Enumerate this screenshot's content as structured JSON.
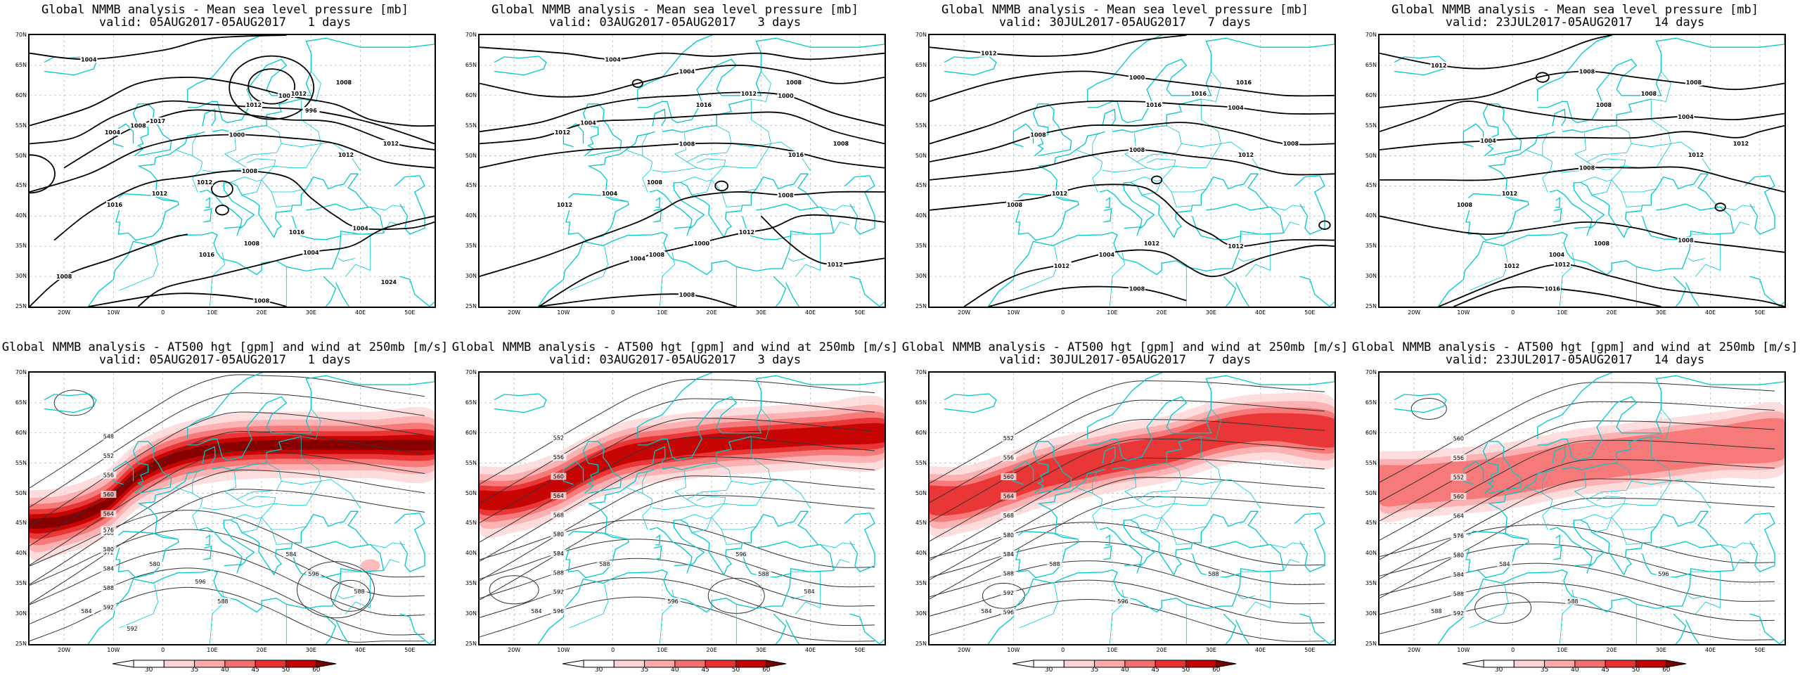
{
  "colors": {
    "coast": "#00c8c8",
    "isobar": "#000000",
    "grid": "#b8b8b8",
    "jet_scale": [
      "#ffffff",
      "#fdd4d4",
      "#fcaaaa",
      "#f47070",
      "#e83030",
      "#c40000",
      "#7a0000"
    ]
  },
  "axes": {
    "lat_labels": [
      "70N",
      "65N",
      "60N",
      "55N",
      "50N",
      "45N",
      "40N",
      "35N",
      "30N",
      "25N"
    ],
    "lon_labels": [
      "20W",
      "10W",
      "0",
      "10E",
      "20E",
      "30E",
      "40E",
      "50E"
    ]
  },
  "colorbar": {
    "ticks": [
      "30",
      "35",
      "40",
      "45",
      "50",
      "60"
    ]
  },
  "panels": [
    {
      "title": "Global NMMB analysis - Mean sea level pressure [mb]",
      "valid": "valid: 05AUG2017-05AUG2017   1 days",
      "type": "mslp",
      "contour_labels": [
        "1004",
        "1000",
        "996",
        "1008",
        "1000",
        "1004",
        "1008",
        "1004",
        "1008",
        "1012",
        "1012",
        "1016",
        "1016",
        "1012",
        "1012",
        "1012",
        "1008",
        "1008",
        "1004",
        "1012",
        "1016",
        "1024",
        "1017",
        "1008"
      ]
    },
    {
      "title": "Global NMMB analysis - Mean sea level pressure [mb]",
      "valid": "valid: 03AUG2017-05AUG2017   3 days",
      "type": "mslp",
      "contour_labels": [
        "1004",
        "1004",
        "1000",
        "1004",
        "1008",
        "1008",
        "1004",
        "1008",
        "1012",
        "1016",
        "1016",
        "1012",
        "1008",
        "1012",
        "1008",
        "1004",
        "1000",
        "1008",
        "1012",
        "1008",
        "1012"
      ]
    },
    {
      "title": "Global NMMB analysis - Mean sea level pressure [mb]",
      "valid": "valid: 30JUL2017-05AUG2017   7 days",
      "type": "mslp",
      "contour_labels": [
        "1012",
        "1000",
        "1004",
        "1008",
        "1008",
        "1012",
        "1016",
        "1008",
        "1012",
        "1016",
        "1012",
        "1008",
        "1004",
        "1016",
        "1008",
        "1012",
        "1012",
        "1016"
      ]
    },
    {
      "title": "Global NMMB analysis - Mean sea level pressure [mb]",
      "valid": "valid: 23JUL2017-05AUG2017   14 days",
      "type": "mslp",
      "contour_labels": [
        "1012",
        "1008",
        "1004",
        "1004",
        "1008",
        "1008",
        "1012",
        "1016",
        "1012",
        "1008",
        "1012",
        "1008",
        "1004",
        "1008",
        "1012",
        "1012",
        "1008",
        "1008"
      ]
    },
    {
      "title": "Global NMMB analysis - AT500 hgt [gpm] and wind at 250mb [m/s]",
      "valid": "valid: 05AUG2017-05AUG2017   1 days",
      "type": "z500",
      "contour_labels": [
        "548",
        "552",
        "556",
        "560",
        "564",
        "568",
        "572",
        "576",
        "580",
        "584",
        "588",
        "592",
        "596",
        "584",
        "580",
        "588",
        "584",
        "588",
        "592",
        "596"
      ]
    },
    {
      "title": "Global NMMB analysis - AT500 hgt [gpm] and wind at 250mb [m/s]",
      "valid": "valid: 03AUG2017-05AUG2017   3 days",
      "type": "z500",
      "contour_labels": [
        "552",
        "556",
        "560",
        "564",
        "568",
        "572",
        "576",
        "580",
        "584",
        "588",
        "592",
        "596",
        "588",
        "584",
        "588",
        "596",
        "596",
        "584"
      ]
    },
    {
      "title": "Global NMMB analysis - AT500 hgt [gpm] and wind at 250mb [m/s]",
      "valid": "valid: 30JUL2017-05AUG2017   7 days",
      "type": "z500",
      "contour_labels": [
        "552",
        "556",
        "560",
        "564",
        "568",
        "572",
        "576",
        "580",
        "584",
        "588",
        "592",
        "596",
        "588",
        "584",
        "588",
        "596"
      ]
    },
    {
      "title": "Global NMMB analysis - AT500 hgt [gpm] and wind at 250mb [m/s]",
      "valid": "valid: 23JUL2017-05AUG2017   14 days",
      "type": "z500",
      "contour_labels": [
        "560",
        "556",
        "552",
        "560",
        "564",
        "568",
        "572",
        "576",
        "580",
        "584",
        "588",
        "592",
        "596",
        "588",
        "584",
        "588"
      ]
    }
  ]
}
